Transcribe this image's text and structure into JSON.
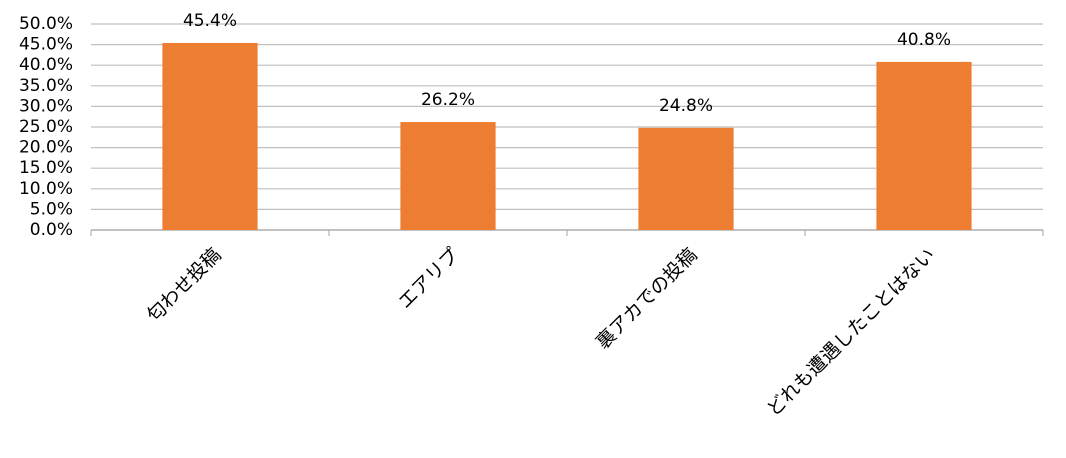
{
  "chart_data": {
    "type": "bar",
    "categories": [
      "匂わせ投稿",
      "エアリプ",
      "裏アカでの投稿",
      "どれも遭遇したことはない"
    ],
    "values": [
      45.4,
      26.2,
      24.8,
      40.8
    ],
    "value_labels": [
      "45.4%",
      "26.2%",
      "24.8%",
      "40.8%"
    ],
    "color": "#ed7d31",
    "ylim": [
      0,
      50
    ],
    "yticks": [
      {
        "value": 0,
        "label": "0.0%"
      },
      {
        "value": 5,
        "label": "5.0%"
      },
      {
        "value": 10,
        "label": "10.0%"
      },
      {
        "value": 15,
        "label": "15.0%"
      },
      {
        "value": 20,
        "label": "20.0%"
      },
      {
        "value": 25,
        "label": "25.0%"
      },
      {
        "value": 30,
        "label": "30.0%"
      },
      {
        "value": 35,
        "label": "35.0%"
      },
      {
        "value": 40,
        "label": "40.0%"
      },
      {
        "value": 45,
        "label": "45.0%"
      },
      {
        "value": 50,
        "label": "50.0%"
      }
    ],
    "grid": true
  }
}
